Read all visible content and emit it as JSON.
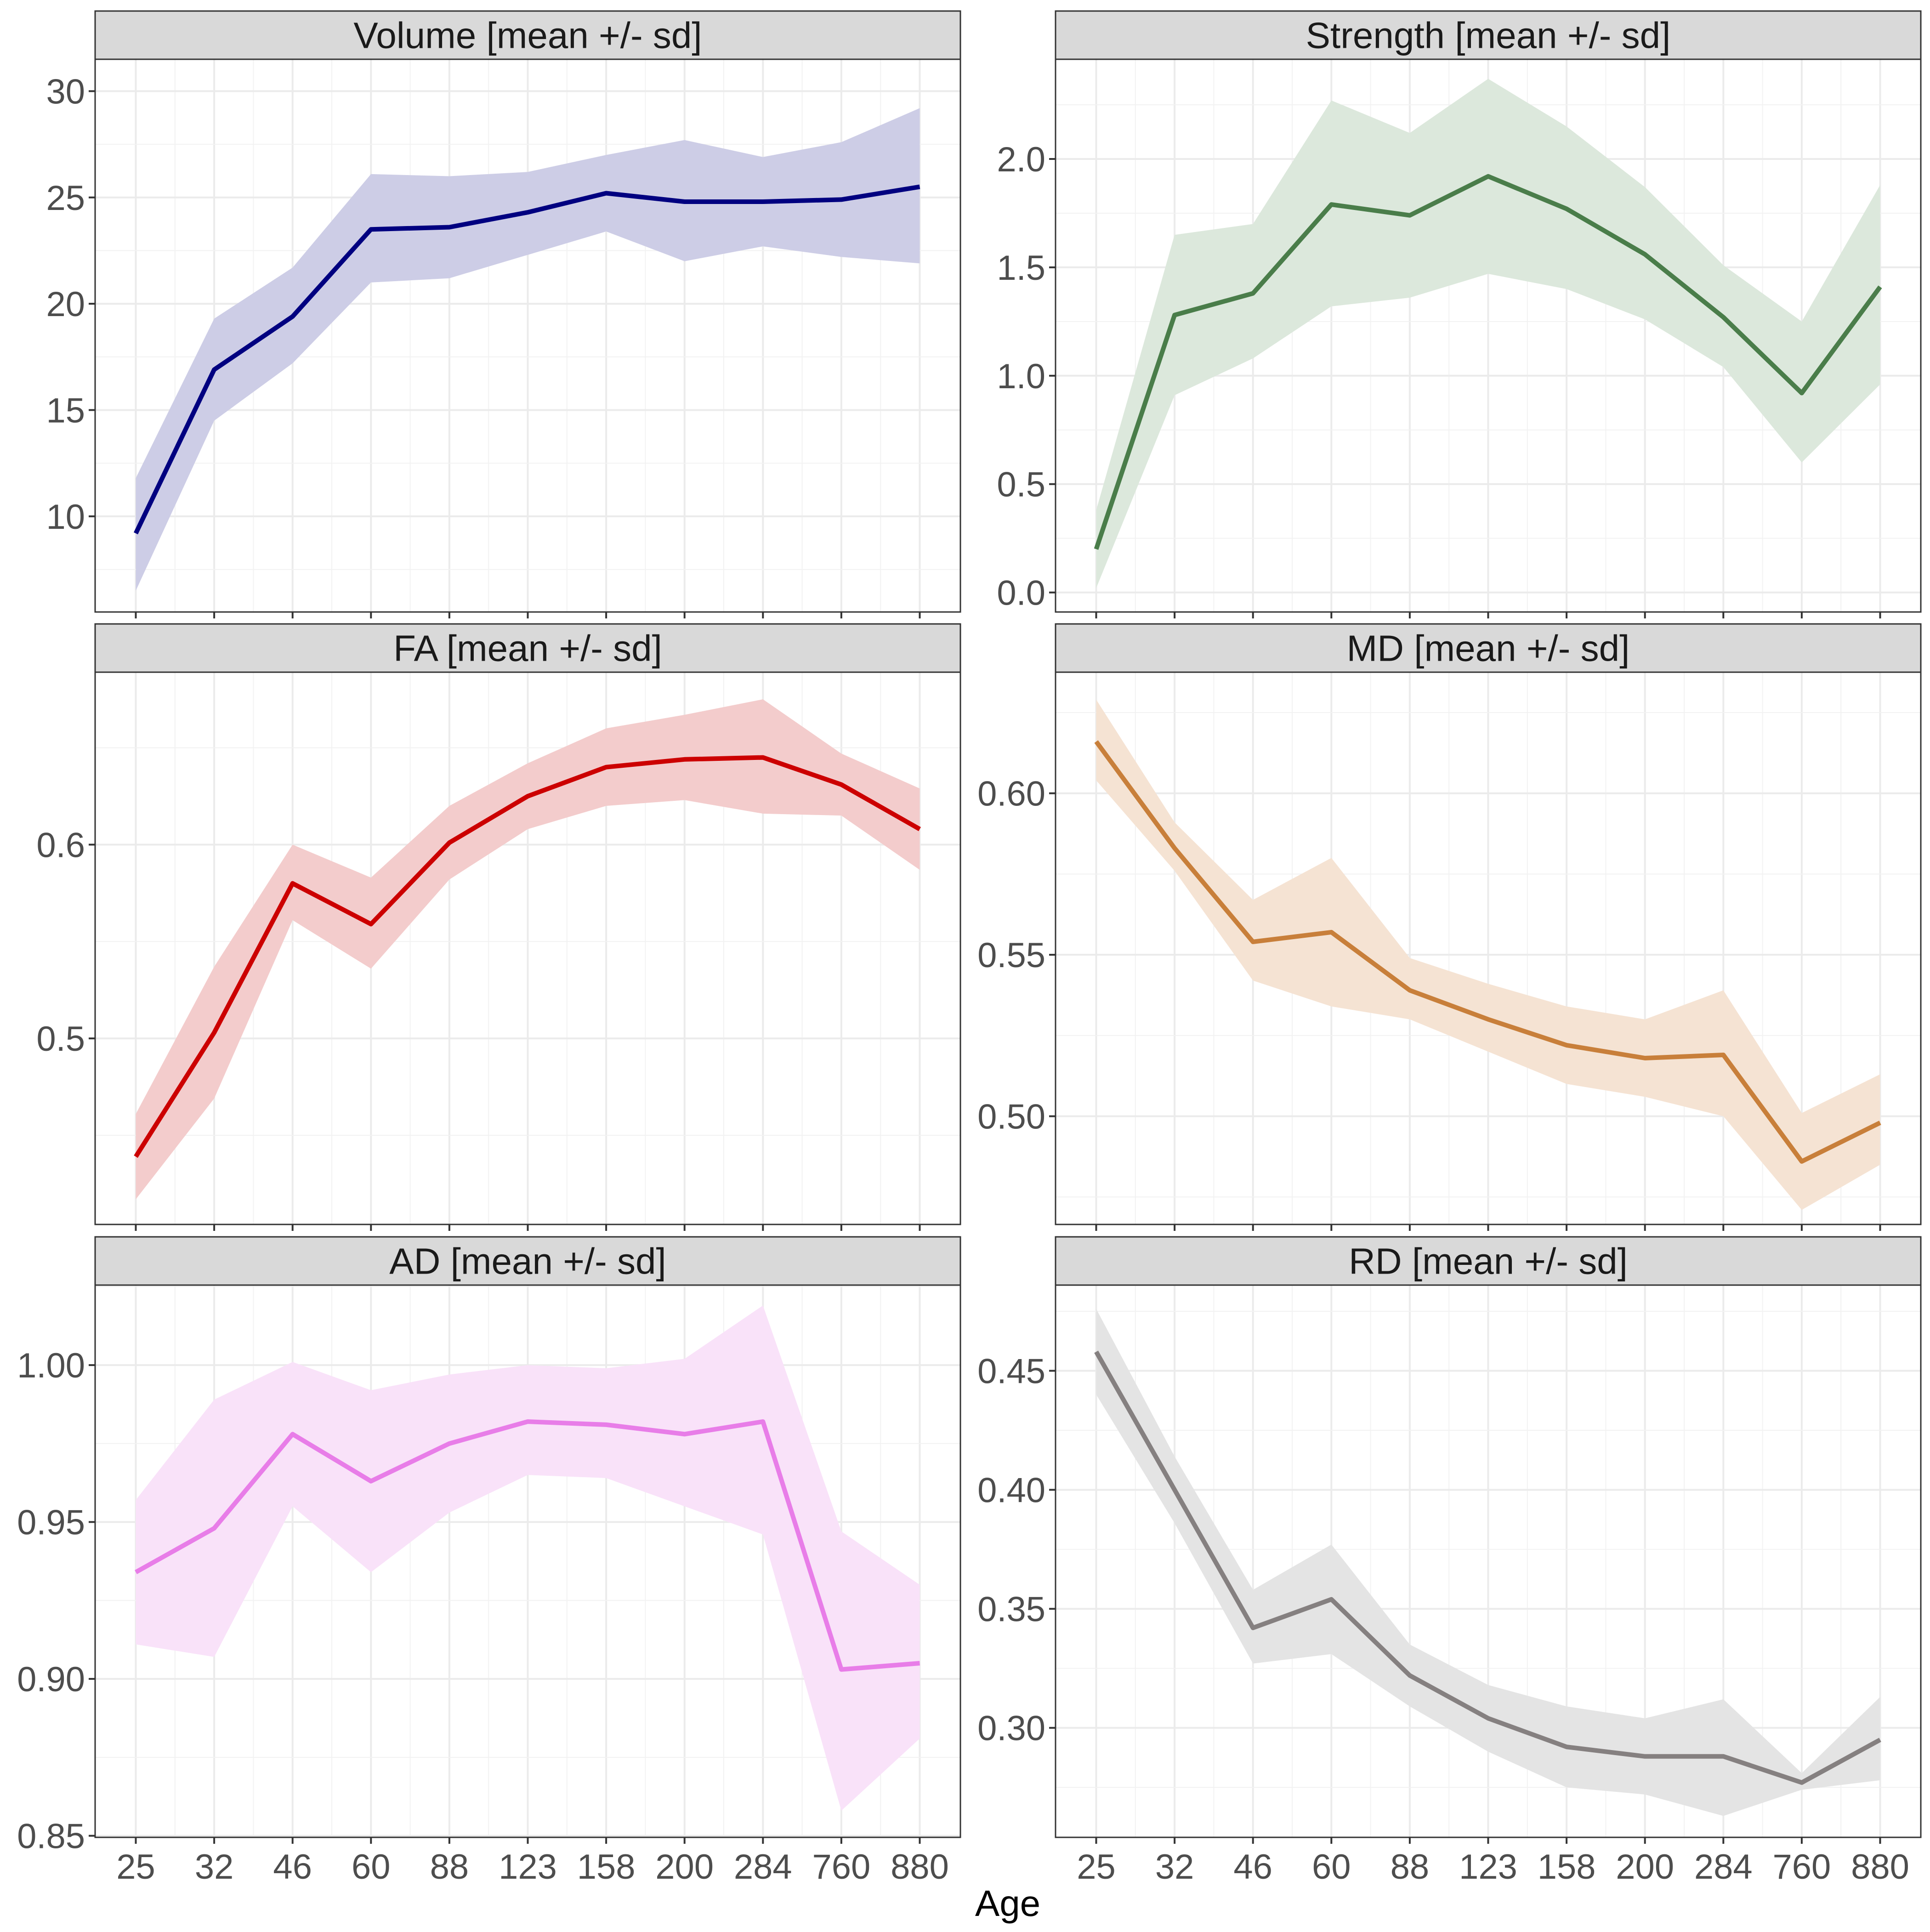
{
  "chart_data": {
    "type": "line",
    "layout": "facet-grid-3x2",
    "xlabel": "Age",
    "categories": [
      "25",
      "32",
      "46",
      "60",
      "88",
      "123",
      "158",
      "200",
      "284",
      "760",
      "880"
    ],
    "shared_x_ticks_rows": "bottom",
    "panels": [
      {
        "id": "volume",
        "title": "Volume [mean +/- sd]",
        "color": "#000080",
        "ribbon_color": "#cdcde6",
        "ylim": [
          5.5,
          31.5
        ],
        "yticks": [
          10,
          15,
          20,
          25,
          30
        ],
        "ytick_labels": [
          "10",
          "15",
          "20",
          "25",
          "30"
        ],
        "mean": [
          9.2,
          16.9,
          19.4,
          23.5,
          23.6,
          24.3,
          25.2,
          24.8,
          24.8,
          24.9,
          25.5
        ],
        "lower": [
          6.5,
          14.5,
          17.2,
          21.0,
          21.2,
          22.3,
          23.4,
          22.0,
          22.7,
          22.2,
          21.9
        ],
        "upper": [
          11.8,
          19.3,
          21.7,
          26.1,
          26.0,
          26.2,
          27.0,
          27.7,
          26.9,
          27.6,
          29.2
        ]
      },
      {
        "id": "strength",
        "title": "Strength [mean +/- sd]",
        "color": "#4a7d4a",
        "ribbon_color": "#dce8dc",
        "ylim": [
          -0.09,
          2.46
        ],
        "yticks": [
          0.0,
          0.5,
          1.0,
          1.5,
          2.0
        ],
        "ytick_labels": [
          "0.0",
          "0.5",
          "1.0",
          "1.5",
          "2.0"
        ],
        "mean": [
          0.2,
          1.28,
          1.38,
          1.79,
          1.74,
          1.92,
          1.77,
          1.56,
          1.27,
          0.92,
          1.41
        ],
        "lower": [
          0.02,
          0.91,
          1.08,
          1.32,
          1.36,
          1.47,
          1.4,
          1.26,
          1.04,
          0.6,
          0.96
        ],
        "upper": [
          0.38,
          1.65,
          1.7,
          2.27,
          2.12,
          2.37,
          2.15,
          1.87,
          1.51,
          1.25,
          1.88
        ]
      },
      {
        "id": "fa",
        "title": "FA [mean +/- sd]",
        "color": "#cc0000",
        "ribbon_color": "#f3cccc",
        "ylim": [
          0.404,
          0.689
        ],
        "yticks": [
          0.5,
          0.6
        ],
        "ytick_labels": [
          "0.5",
          "0.6"
        ],
        "mean": [
          0.439,
          0.503,
          0.58,
          0.559,
          0.601,
          0.625,
          0.64,
          0.644,
          0.645,
          0.631,
          0.608
        ],
        "lower": [
          0.417,
          0.469,
          0.561,
          0.536,
          0.582,
          0.608,
          0.62,
          0.623,
          0.616,
          0.615,
          0.587
        ],
        "upper": [
          0.461,
          0.537,
          0.6,
          0.583,
          0.62,
          0.642,
          0.66,
          0.667,
          0.675,
          0.647,
          0.629
        ]
      },
      {
        "id": "md",
        "title": "MD [mean +/- sd]",
        "color": "#c87f3a",
        "ribbon_color": "#f5e3d3",
        "ylim": [
          0.4665,
          0.6375
        ],
        "yticks": [
          0.5,
          0.55,
          0.6
        ],
        "ytick_labels": [
          "0.50",
          "0.55",
          "0.60"
        ],
        "mean": [
          0.616,
          0.583,
          0.554,
          0.557,
          0.539,
          0.53,
          0.522,
          0.518,
          0.519,
          0.486,
          0.498
        ],
        "lower": [
          0.604,
          0.576,
          0.542,
          0.534,
          0.53,
          0.52,
          0.51,
          0.506,
          0.5,
          0.471,
          0.485
        ],
        "upper": [
          0.629,
          0.591,
          0.567,
          0.58,
          0.549,
          0.541,
          0.534,
          0.53,
          0.539,
          0.501,
          0.513
        ]
      },
      {
        "id": "ad",
        "title": "AD [mean +/- sd]",
        "color": "#e87de8",
        "ribbon_color": "#f9e2f9",
        "ylim": [
          0.8495,
          1.0255
        ],
        "yticks": [
          0.85,
          0.9,
          0.95,
          1.0
        ],
        "ytick_labels": [
          "0.85",
          "0.90",
          "0.95",
          "1.00"
        ],
        "mean": [
          0.934,
          0.948,
          0.978,
          0.963,
          0.975,
          0.982,
          0.981,
          0.978,
          0.982,
          0.903,
          0.905
        ],
        "lower": [
          0.911,
          0.907,
          0.955,
          0.934,
          0.953,
          0.965,
          0.964,
          0.955,
          0.946,
          0.858,
          0.881
        ],
        "upper": [
          0.957,
          0.989,
          1.001,
          0.992,
          0.997,
          1.0,
          0.999,
          1.002,
          1.019,
          0.947,
          0.93
        ]
      },
      {
        "id": "rd",
        "title": "RD [mean +/- sd]",
        "color": "#858080",
        "ribbon_color": "#e4e4e4",
        "ylim": [
          0.254,
          0.486
        ],
        "yticks": [
          0.3,
          0.35,
          0.4,
          0.45
        ],
        "ytick_labels": [
          "0.30",
          "0.35",
          "0.40",
          "0.45"
        ],
        "mean": [
          0.458,
          0.4,
          0.342,
          0.354,
          0.322,
          0.304,
          0.292,
          0.288,
          0.288,
          0.277,
          0.295
        ],
        "lower": [
          0.44,
          0.386,
          0.327,
          0.331,
          0.309,
          0.29,
          0.275,
          0.272,
          0.263,
          0.274,
          0.278
        ],
        "upper": [
          0.476,
          0.414,
          0.358,
          0.377,
          0.335,
          0.318,
          0.309,
          0.304,
          0.312,
          0.281,
          0.313
        ]
      }
    ]
  }
}
